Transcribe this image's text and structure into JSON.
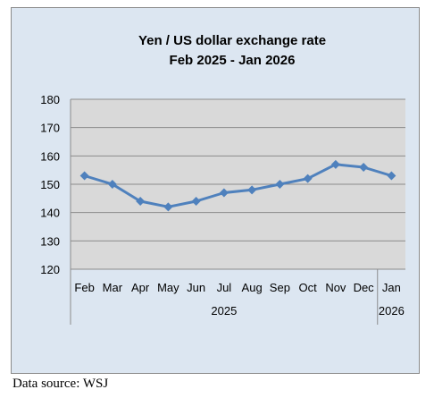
{
  "chart_data": {
    "type": "line",
    "title": "Yen / US dollar exchange rate",
    "subtitle": "Feb 2025  - Jan 2026",
    "categories": [
      "Feb",
      "Mar",
      "Apr",
      "May",
      "Jun",
      "Jul",
      "Aug",
      "Sep",
      "Oct",
      "Nov",
      "Dec",
      "Jan"
    ],
    "year_groups": [
      {
        "label": "2025",
        "count": 11
      },
      {
        "label": "2026",
        "count": 1
      }
    ],
    "series": [
      {
        "values": [
          153,
          150,
          144,
          142,
          144,
          147,
          148,
          150,
          152,
          157,
          156,
          153
        ]
      }
    ],
    "yticks": [
      120,
      130,
      140,
      150,
      160,
      170,
      180
    ],
    "ylim": [
      120,
      180
    ],
    "grid": true,
    "legend": "none",
    "colors": {
      "line": "#4f81bd",
      "plot_bg": "#d9d9d9",
      "frame_bg": "#dce6f1"
    }
  },
  "source_note": "Data source: WSJ"
}
